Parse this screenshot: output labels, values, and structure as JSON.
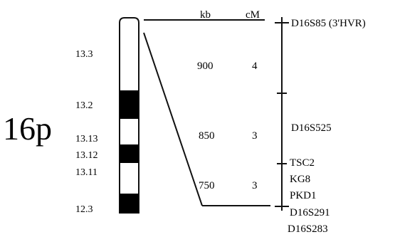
{
  "chromosome": {
    "label": "16p",
    "bands": [
      {
        "label": "13.3",
        "stain": "white"
      },
      {
        "label": "13.2",
        "stain": "black"
      },
      {
        "label": "13.13",
        "stain": "white"
      },
      {
        "label": "13.12",
        "stain": "black"
      },
      {
        "label": "13.11",
        "stain": "white"
      },
      {
        "label": "12.3",
        "stain": "black"
      }
    ]
  },
  "headers": {
    "kb": "kb",
    "cm": "cM"
  },
  "intervals": [
    {
      "kb": "900",
      "cm": "4"
    },
    {
      "kb": "850",
      "cm": "3"
    },
    {
      "kb": "750",
      "cm": "3"
    }
  ],
  "markers": [
    "D16S85 (3'HVR)",
    "D16S525",
    "TSC2",
    "KG8",
    "PKD1",
    "D16S291",
    "D16S283"
  ],
  "colors": {
    "ink": "#111111",
    "band_dark": "#000000",
    "band_light": "#ffffff"
  }
}
